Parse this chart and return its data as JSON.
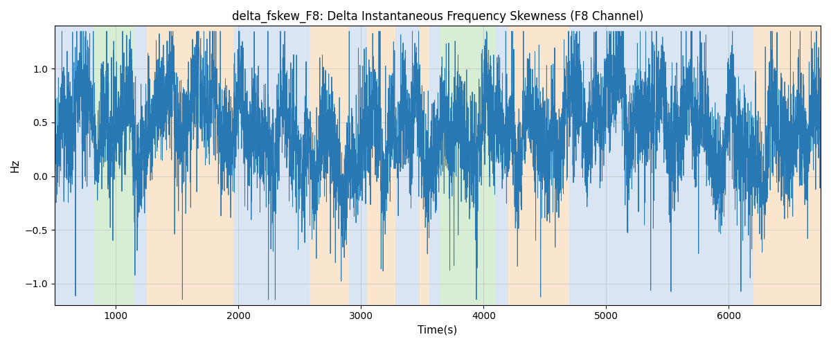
{
  "title": "delta_fskew_F8: Delta Instantaneous Frequency Skewness (F8 Channel)",
  "xlabel": "Time(s)",
  "ylabel": "Hz",
  "xlim": [
    500,
    6750
  ],
  "ylim": [
    -1.2,
    1.4
  ],
  "line_color": "#2878b4",
  "line_width": 0.7,
  "background_bands": [
    {
      "xmin": 500,
      "xmax": 820,
      "color": "#aec6e8",
      "alpha": 0.45
    },
    {
      "xmin": 820,
      "xmax": 1150,
      "color": "#a8d8a0",
      "alpha": 0.45
    },
    {
      "xmin": 1150,
      "xmax": 1250,
      "color": "#aec6e8",
      "alpha": 0.45
    },
    {
      "xmin": 1250,
      "xmax": 1960,
      "color": "#f5c895",
      "alpha": 0.45
    },
    {
      "xmin": 1960,
      "xmax": 2580,
      "color": "#aec6e8",
      "alpha": 0.45
    },
    {
      "xmin": 2580,
      "xmax": 2900,
      "color": "#f5c895",
      "alpha": 0.45
    },
    {
      "xmin": 2900,
      "xmax": 3050,
      "color": "#aec6e8",
      "alpha": 0.45
    },
    {
      "xmin": 3050,
      "xmax": 3280,
      "color": "#f5c895",
      "alpha": 0.45
    },
    {
      "xmin": 3280,
      "xmax": 3480,
      "color": "#aec6e8",
      "alpha": 0.45
    },
    {
      "xmin": 3480,
      "xmax": 3560,
      "color": "#f5c895",
      "alpha": 0.45
    },
    {
      "xmin": 3560,
      "xmax": 3640,
      "color": "#aec6e8",
      "alpha": 0.45
    },
    {
      "xmin": 3640,
      "xmax": 4100,
      "color": "#a8d8a0",
      "alpha": 0.45
    },
    {
      "xmin": 4100,
      "xmax": 4200,
      "color": "#aec6e8",
      "alpha": 0.45
    },
    {
      "xmin": 4200,
      "xmax": 4700,
      "color": "#f5c895",
      "alpha": 0.45
    },
    {
      "xmin": 4700,
      "xmax": 6200,
      "color": "#aec6e8",
      "alpha": 0.45
    },
    {
      "xmin": 6200,
      "xmax": 6750,
      "color": "#f5c895",
      "alpha": 0.45
    }
  ],
  "seed": 42,
  "n_points": 6200,
  "grid_color": "#b0b0b0",
  "grid_alpha": 0.7,
  "grid_linewidth": 0.5,
  "title_fontsize": 12,
  "label_fontsize": 11
}
